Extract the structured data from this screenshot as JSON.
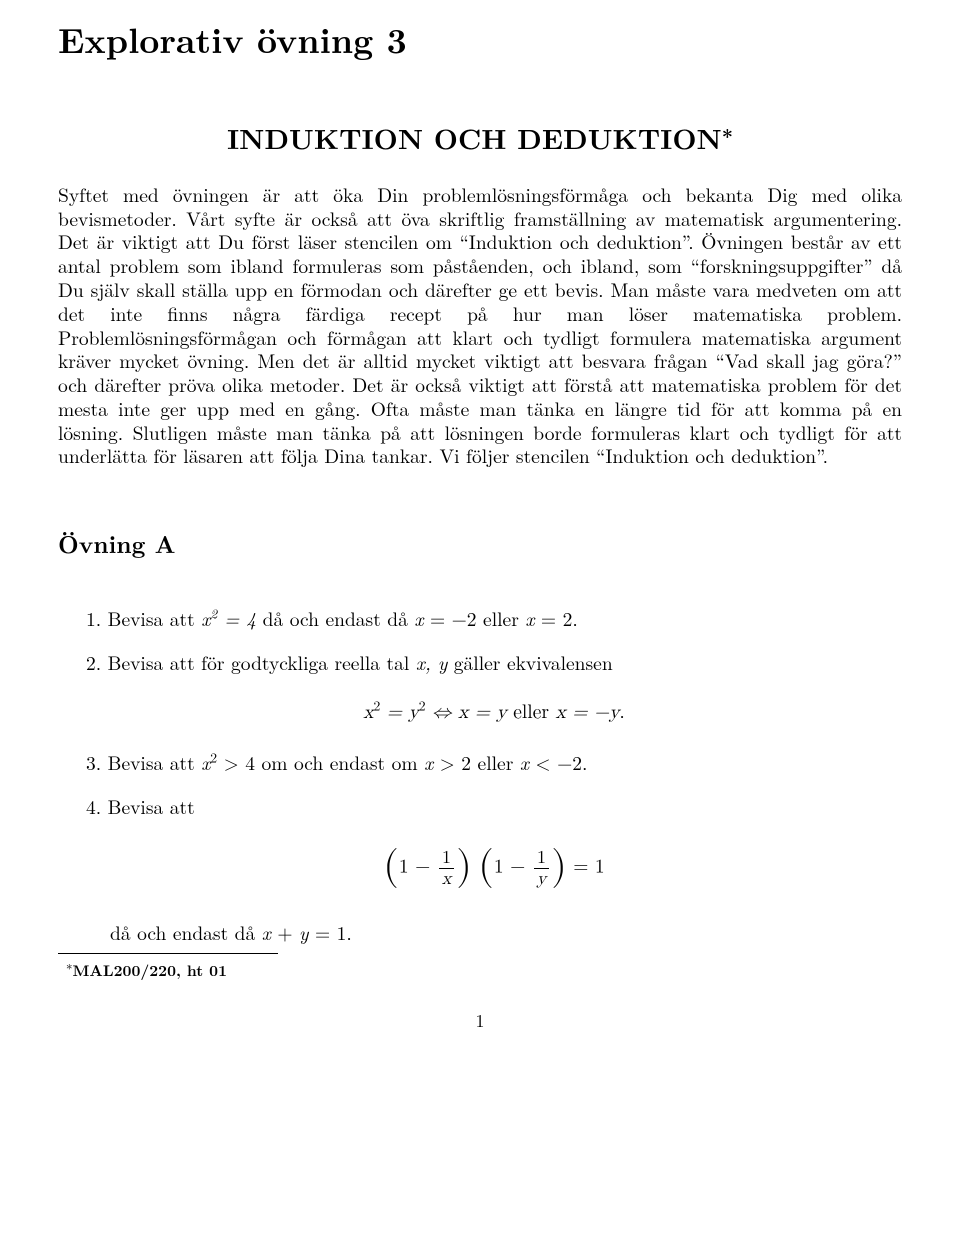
{
  "title": "Explorativ övning 3",
  "subtitle": "INDUKTION OCH DEDUKTION",
  "subtitle_star": "∗",
  "intro": "Syftet med övningen är att öka Din problemlösningsförmåga och bekanta Dig med olika bevismetoder. Vårt syfte är också att öva skriftlig framställning av matematisk argumentering. Det är viktigt att Du först läser stencilen om “Induktion och deduktion”. Övningen består av ett antal problem som ibland formuleras som påståenden, och ibland, som “forskningsuppgifter” då Du själv skall ställa upp en förmodan och därefter ge ett bevis. Man måste vara medveten om att det inte finns några färdiga recept på hur man löser matematiska problem. Problemlösningsförmågan och förmågan att klart och tydligt formulera matematiska argument kräver mycket övning. Men det är alltid mycket viktigt att besvara frågan “Vad skall jag göra?” och därefter pröva olika metoder. Det är också viktigt att förstå att matematiska problem för det mesta inte ger upp med en gång. Ofta måste man tänka en längre tid för att komma på en lösning. Slutligen måste man tänka på att lösningen borde formuleras klart och tydligt för att underlätta för läsaren att följa Dina tankar. Vi följer stencilen “Induktion och deduktion”.",
  "section_heading": "Övning A",
  "problems": {
    "p1_pre": "1. Bevisa att ",
    "p1_math": "x² = 4",
    "p1_mid": " då och endast då ",
    "p1_math2": "x = −2",
    "p1_or": " eller ",
    "p1_math3": "x = 2",
    "p1_end": ".",
    "p2_pre": "2. Bevisa att för godtyckliga reella tal ",
    "p2_math": "x, y",
    "p2_end": " gäller ekvivalensen",
    "p2_formula_lhs": "x² = y²",
    "p2_formula_iff": " ⇔ ",
    "p2_formula_r1": "x = y",
    "p2_formula_or": "  eller  ",
    "p2_formula_r2": "x = −y",
    "p2_formula_end": ".",
    "p3_pre": "3. Bevisa att ",
    "p3_math": "x² > 4",
    "p3_mid": " om och endast om ",
    "p3_math2": "x > 2",
    "p3_or": " eller ",
    "p3_math3": "x < −2",
    "p3_end": ".",
    "p4_pre": "4. Bevisa att",
    "p4_eq_rhs": " = 1",
    "p4_sub_pre": "då och endast då ",
    "p4_sub_math": "x + y = 1",
    "p4_sub_end": "."
  },
  "footnote_star": "∗",
  "footnote": "MAL200/220, ht 01",
  "pagenum": "1"
}
